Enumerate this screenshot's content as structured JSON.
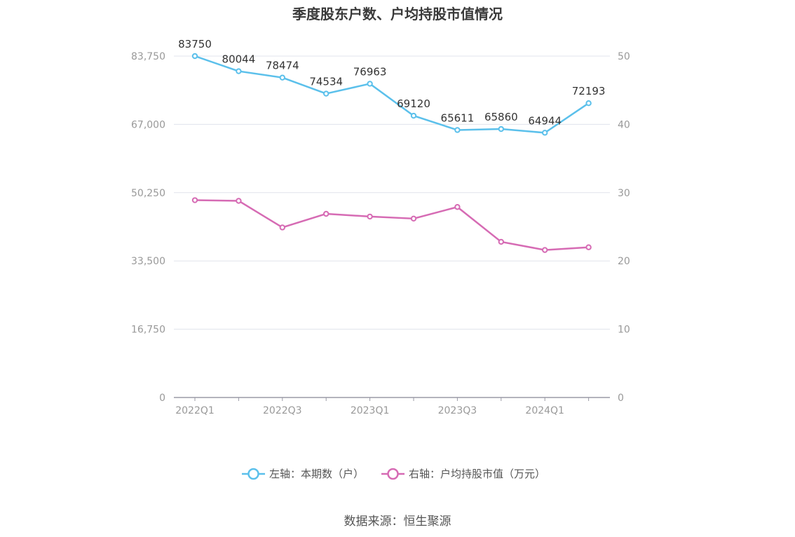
{
  "title": "季度股东户数、户均持股市值情况",
  "source": "数据来源：恒生聚源",
  "colors": {
    "left_series": "#5bc0eb",
    "right_series": "#d66bb4",
    "grid": "#e0e3ec",
    "axis": "#9a9aa6"
  },
  "chart_data": {
    "type": "line",
    "x": [
      "2022Q1",
      "2022Q2",
      "2022Q3",
      "2022Q4",
      "2023Q1",
      "2023Q2",
      "2023Q3",
      "2023Q4",
      "2024Q1",
      "2024Q2"
    ],
    "x_tick_labels": [
      "2022Q1",
      "2022Q3",
      "2023Q1",
      "2023Q3",
      "2024Q1"
    ],
    "left_axis": {
      "ylim": [
        0,
        83750
      ],
      "tick_labels": [
        "0",
        "16,750",
        "33,500",
        "50,250",
        "67,000",
        "83,750"
      ]
    },
    "right_axis": {
      "ylim": [
        0,
        50
      ],
      "tick_labels": [
        "0",
        "10",
        "20",
        "30",
        "40",
        "50"
      ]
    },
    "grid": true,
    "legend_position": "bottom",
    "series": [
      {
        "name": "左轴：本期数（户）",
        "axis": "left",
        "values": [
          83750,
          80044,
          78474,
          74534,
          76963,
          69120,
          65611,
          65860,
          64944,
          72193
        ],
        "labels": [
          "83750",
          "80044",
          "78474",
          "74534",
          "76963",
          "69120",
          "65611",
          "65860",
          "64944",
          "72193"
        ]
      },
      {
        "name": "右轴：户均持股市值（万元）",
        "axis": "right",
        "values": [
          28.9,
          28.8,
          24.9,
          26.9,
          26.5,
          26.2,
          27.9,
          22.8,
          21.6,
          22.0
        ]
      }
    ]
  }
}
